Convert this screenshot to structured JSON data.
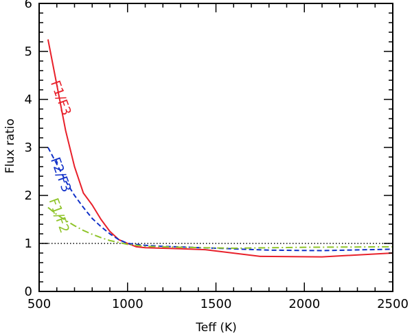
{
  "chart_data": {
    "type": "line",
    "title": "",
    "xlabel": "Teff (K)",
    "ylabel": "Flux ratio",
    "xlim": [
      500,
      2500
    ],
    "ylim": [
      0,
      6
    ],
    "xticks": [
      500,
      1000,
      1500,
      2000,
      2500
    ],
    "yticks": [
      0,
      1,
      2,
      3,
      4,
      5,
      6
    ],
    "x_minor_step": 100,
    "y_minor_step": 0.2,
    "reference_line": {
      "y": 1,
      "style": "dotted",
      "color": "#000000"
    },
    "series": [
      {
        "name": "F1/F3",
        "color": "#e8202a",
        "style": "solid",
        "label_anchor": [
          600,
          4.0
        ],
        "x": [
          550,
          600,
          650,
          700,
          750,
          800,
          850,
          900,
          950,
          1000,
          1050,
          1100,
          1200,
          1300,
          1440,
          1750,
          2100,
          2500
        ],
        "y": [
          5.25,
          4.3,
          3.35,
          2.6,
          2.05,
          1.8,
          1.5,
          1.25,
          1.08,
          1.0,
          0.93,
          0.91,
          0.9,
          0.89,
          0.87,
          0.73,
          0.72,
          0.8
        ]
      },
      {
        "name": "F2/F3",
        "color": "#1030c8",
        "style": "dashed",
        "label_anchor": [
          600,
          2.4
        ],
        "x": [
          550,
          600,
          650,
          700,
          750,
          800,
          850,
          900,
          950,
          1000,
          1050,
          1100,
          1200,
          1500,
          1800,
          2100,
          2500
        ],
        "y": [
          3.0,
          2.65,
          2.3,
          2.0,
          1.75,
          1.52,
          1.35,
          1.2,
          1.08,
          1.0,
          0.98,
          0.96,
          0.94,
          0.9,
          0.86,
          0.85,
          0.88
        ]
      },
      {
        "name": "F1/F2",
        "color": "#8fc42a",
        "style": "dashdot",
        "label_anchor": [
          590,
          1.55
        ],
        "x": [
          550,
          600,
          650,
          700,
          750,
          800,
          850,
          900,
          950,
          1000,
          1100,
          1300,
          1600,
          2000,
          2500
        ],
        "y": [
          1.75,
          1.6,
          1.48,
          1.37,
          1.27,
          1.19,
          1.12,
          1.06,
          1.02,
          0.98,
          0.94,
          0.92,
          0.9,
          0.92,
          0.93
        ]
      }
    ]
  }
}
